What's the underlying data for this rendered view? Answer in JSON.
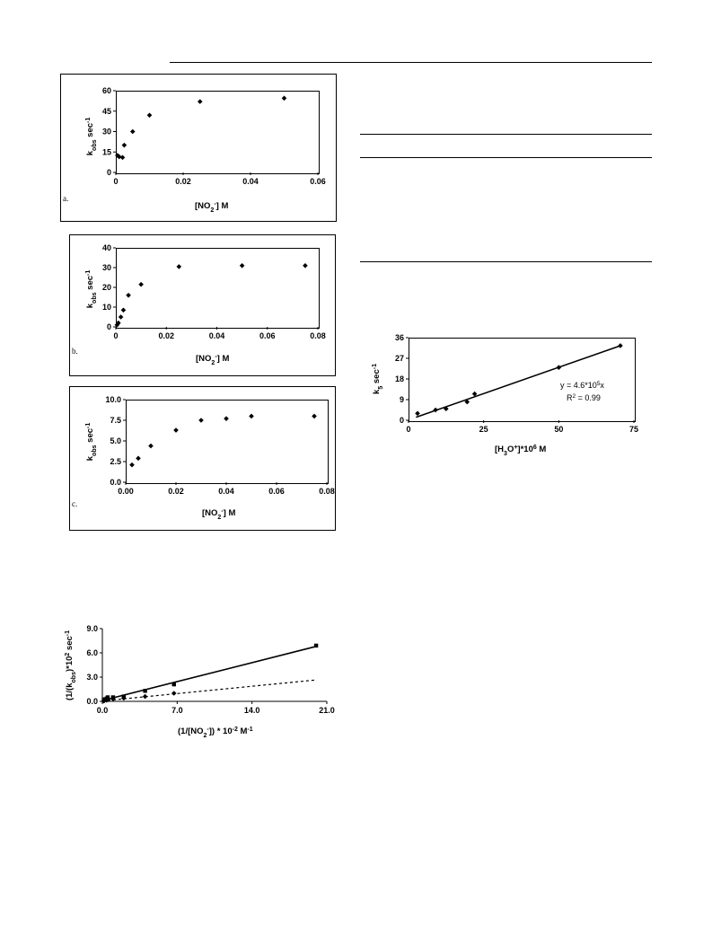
{
  "chart_data": [
    {
      "panel_label": "a.",
      "type": "scatter",
      "xlabel": "[NO2-] M",
      "ylabel": "kobs sec-1",
      "xlim": [
        0,
        0.06
      ],
      "ylim": [
        0,
        60
      ],
      "x_ticks": [
        "0",
        "0.02",
        "0.04",
        "0.06"
      ],
      "y_ticks": [
        "0",
        "15",
        "30",
        "45",
        "60"
      ],
      "series": [
        {
          "x": [
            0.0005,
            0.001,
            0.002,
            0.0025,
            0.005,
            0.01,
            0.025,
            0.05
          ],
          "y": [
            12.5,
            11.5,
            11,
            20,
            30,
            42,
            52,
            54.5
          ]
        }
      ]
    },
    {
      "panel_label": "b.",
      "type": "scatter",
      "xlabel": "[NO2-] M",
      "ylabel": "kobs sec-1",
      "xlim": [
        0,
        0.08
      ],
      "ylim": [
        0,
        40
      ],
      "x_ticks": [
        "0",
        "0.02",
        "0.04",
        "0.06",
        "0.08"
      ],
      "y_ticks": [
        "0",
        "10",
        "20",
        "30",
        "40"
      ],
      "series": [
        {
          "x": [
            0.0005,
            0.001,
            0.002,
            0.003,
            0.005,
            0.01,
            0.025,
            0.05,
            0.075
          ],
          "y": [
            1,
            2,
            5,
            8.5,
            16,
            21.5,
            30.5,
            31,
            31
          ]
        }
      ]
    },
    {
      "panel_label": "c.",
      "type": "scatter",
      "xlabel": "[NO2-] M",
      "ylabel": "kobs sec-1",
      "xlim": [
        0,
        0.08
      ],
      "ylim": [
        0,
        10
      ],
      "x_ticks": [
        "0.00",
        "0.02",
        "0.04",
        "0.06",
        "0.08"
      ],
      "y_ticks": [
        "0.0",
        "2.5",
        "5.0",
        "7.5",
        "10.0"
      ],
      "series": [
        {
          "x": [
            0.0025,
            0.005,
            0.01,
            0.02,
            0.03,
            0.04,
            0.05,
            0.075
          ],
          "y": [
            2.1,
            2.9,
            4.4,
            6.3,
            7.5,
            7.7,
            8,
            8
          ]
        }
      ]
    },
    {
      "panel_label": "",
      "type": "scatter",
      "xlabel": "(1/[NO2-]) * 10-2 M-1",
      "ylabel": "(1/(kobs)*102 sec-1",
      "xlim": [
        0,
        21
      ],
      "ylim": [
        0,
        9
      ],
      "x_ticks": [
        "0.0",
        "7.0",
        "14.0",
        "21.0"
      ],
      "y_ticks": [
        "0.0",
        "3.0",
        "6.0",
        "9.0"
      ],
      "series": [
        {
          "marker": "square",
          "x": [
            0.133,
            0.2,
            0.4,
            0.5,
            1,
            2,
            4,
            6.7,
            20
          ],
          "y": [
            0.2,
            0.25,
            0.35,
            0.5,
            0.5,
            0.6,
            1.3,
            2.1,
            6.9
          ],
          "fit": [
            [
              0,
              0.1
            ],
            [
              20,
              6.8
            ]
          ]
        },
        {
          "marker": "diamond",
          "x": [
            0.133,
            0.2,
            0.4,
            0.5,
            1,
            2,
            4,
            6.7
          ],
          "y": [
            0.05,
            0.1,
            0.15,
            0.2,
            0.3,
            0.4,
            0.6,
            1
          ],
          "fit": [
            [
              0,
              0.05
            ],
            [
              20,
              2.65
            ]
          ],
          "fit_style": "dashed"
        }
      ]
    },
    {
      "panel_label": "",
      "type": "scatter",
      "xlabel": "[H3O+]*106 M",
      "ylabel": "k5 sec-1",
      "xlim": [
        0,
        75
      ],
      "ylim": [
        0,
        36
      ],
      "x_ticks": [
        "0",
        "25",
        "50",
        "75"
      ],
      "y_ticks": [
        "0",
        "9",
        "18",
        "27",
        "36"
      ],
      "annotation": [
        "y = 4.6*105x",
        "R2 = 0.99"
      ],
      "series": [
        {
          "x": [
            3,
            9,
            12.5,
            19.5,
            22,
            50,
            70.5
          ],
          "y": [
            3,
            4.5,
            5,
            8,
            11.5,
            23,
            32.5
          ],
          "fit": [
            [
              2.5,
              1.3
            ],
            [
              70.5,
              32.5
            ]
          ]
        }
      ]
    }
  ]
}
